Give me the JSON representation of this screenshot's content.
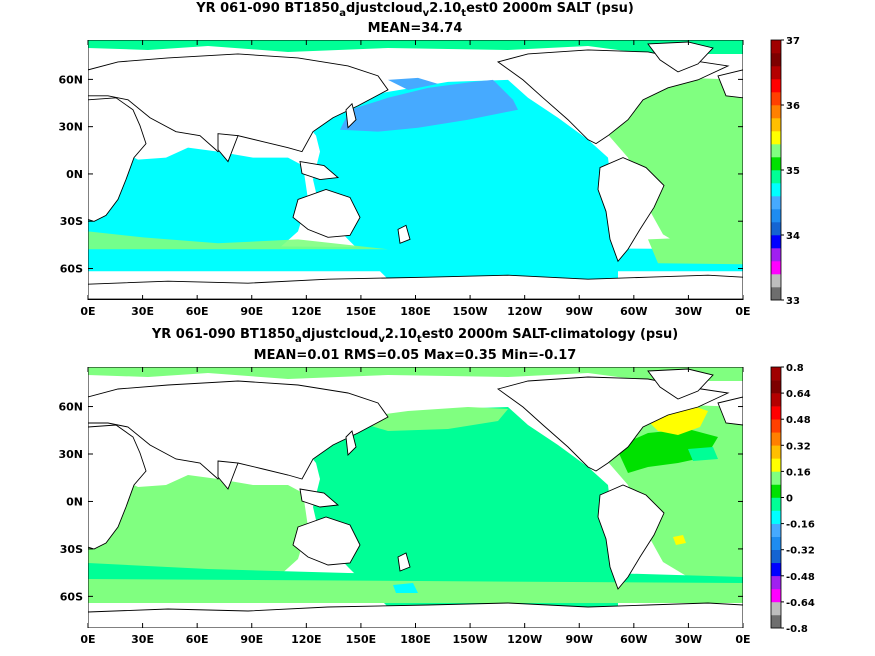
{
  "chart_data": [
    {
      "type": "heatmap",
      "title_line1": {
        "pre": "YR 061-090 BT1850",
        "s1": "a",
        "m1": "djustcloud",
        "s2": "v",
        "m2": "2.10",
        "s3": "t",
        "post": "est0 2000m SALT (psu)"
      },
      "title_line2": "MEAN=34.74",
      "x_ticks": [
        "0E",
        "30E",
        "60E",
        "90E",
        "120E",
        "150E",
        "180E",
        "150W",
        "120W",
        "90W",
        "60W",
        "30W",
        "0E"
      ],
      "y_ticks": [
        "60N",
        "30N",
        "0N",
        "30S",
        "60S"
      ],
      "y_tick_lat": [
        60,
        30,
        0,
        -30,
        -60
      ],
      "lat_range": [
        -80,
        85
      ],
      "lon_range": [
        0,
        360
      ],
      "colorbar": {
        "ticks": [
          "33",
          "34",
          "35",
          "36",
          "37"
        ],
        "range": [
          33,
          37
        ],
        "colors": [
          "#6e6e6e",
          "#bdbdbd",
          "#ff00ff",
          "#a020f0",
          "#0000ff",
          "#1464d2",
          "#1e8cf0",
          "#46aaff",
          "#00ffff",
          "#00ff96",
          "#00e100",
          "#80ff80",
          "#ffff00",
          "#ffbf00",
          "#ff8000",
          "#ff4000",
          "#ff0000",
          "#b40000",
          "#7d0000",
          "#a00000"
        ]
      },
      "field": {
        "background_salinity": 34.7,
        "north_pacific_salinity": 34.4,
        "atlantic_salinity": 35.0,
        "southern_ocean_salinity": 34.8
      }
    },
    {
      "type": "heatmap",
      "title_line1": {
        "pre": "YR 061-090 BT1850",
        "s1": "a",
        "m1": "djustcloud",
        "s2": "v",
        "m2": "2.10",
        "s3": "t",
        "post": "est0 2000m SALT-climatology (psu)"
      },
      "title_line2": "MEAN=0.01   RMS=0.05   Max=0.35   Min=-0.17",
      "x_ticks": [
        "0E",
        "30E",
        "60E",
        "90E",
        "120E",
        "150E",
        "180E",
        "150W",
        "120W",
        "90W",
        "60W",
        "30W",
        "0E"
      ],
      "y_ticks": [
        "60N",
        "30N",
        "0N",
        "30S",
        "60S"
      ],
      "y_tick_lat": [
        60,
        30,
        0,
        -30,
        -60
      ],
      "lat_range": [
        -80,
        85
      ],
      "lon_range": [
        0,
        360
      ],
      "colorbar": {
        "ticks": [
          "0.8",
          "0.64",
          "0.48",
          "0.32",
          "0.16",
          "0",
          "-0.16",
          "-0.32",
          "-0.48",
          "-0.64",
          "-0.8"
        ],
        "range": [
          -0.8,
          0.8
        ],
        "colors": [
          "#6e6e6e",
          "#bdbdbd",
          "#ff00ff",
          "#a020f0",
          "#0000ff",
          "#1464d2",
          "#1e8cf0",
          "#46aaff",
          "#00ffff",
          "#00ff96",
          "#00e100",
          "#80ff80",
          "#ffff00",
          "#ffbf00",
          "#ff8000",
          "#ff4000",
          "#ff0000",
          "#b40000",
          "#7d0000",
          "#a00000"
        ]
      },
      "field": {
        "mean": 0.01,
        "rms": 0.05,
        "max": 0.35,
        "min": -0.17
      }
    }
  ]
}
